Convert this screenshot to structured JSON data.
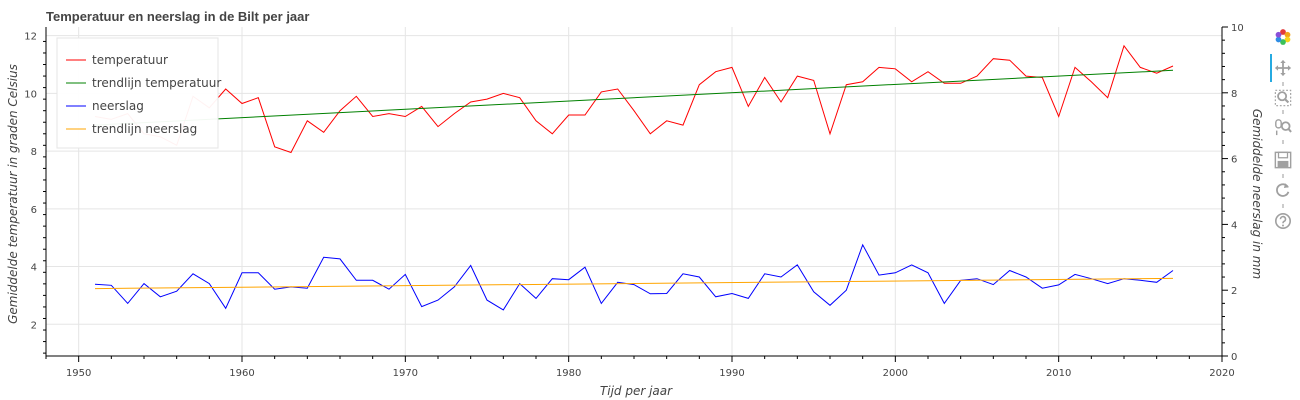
{
  "chart_data": {
    "type": "line",
    "title": "Temperatuur en neerslag in de Bilt per jaar",
    "xlabel": "Tijd per jaar",
    "ylabel_left": "Gemiddelde temperatuur in graden Celsius",
    "ylabel_right": "Gemiddelde neerslag in mm",
    "xlim": [
      1948,
      2020
    ],
    "ylim_left": [
      0.9,
      12.3
    ],
    "ylim_right": [
      0,
      10
    ],
    "xticks": [
      1950,
      1960,
      1970,
      1980,
      1990,
      2000,
      2010,
      2020
    ],
    "yticks_left": [
      2,
      4,
      6,
      8,
      10,
      12
    ],
    "yticks_right": [
      0,
      2,
      4,
      6,
      8,
      10
    ],
    "grid": true,
    "legend_position": "top-left",
    "x": [
      1951,
      1952,
      1953,
      1954,
      1955,
      1956,
      1957,
      1958,
      1959,
      1960,
      1961,
      1962,
      1963,
      1964,
      1965,
      1966,
      1967,
      1968,
      1969,
      1970,
      1971,
      1972,
      1973,
      1974,
      1975,
      1976,
      1977,
      1978,
      1979,
      1980,
      1981,
      1982,
      1983,
      1984,
      1985,
      1986,
      1987,
      1988,
      1989,
      1990,
      1991,
      1992,
      1993,
      1994,
      1995,
      1996,
      1997,
      1998,
      1999,
      2000,
      2001,
      2002,
      2003,
      2004,
      2005,
      2006,
      2007,
      2008,
      2009,
      2010,
      2011,
      2012,
      2013,
      2014,
      2015,
      2016,
      2017
    ],
    "series": [
      {
        "name": "temperatuur",
        "color": "#ff0000",
        "axis": "left",
        "values": [
          9.2,
          9.1,
          9.3,
          8.6,
          8.5,
          8.2,
          9.9,
          9.5,
          10.15,
          9.65,
          9.85,
          8.15,
          7.95,
          9.05,
          8.65,
          9.4,
          9.9,
          9.2,
          9.3,
          9.2,
          9.55,
          8.85,
          9.3,
          9.7,
          9.8,
          10.0,
          9.85,
          9.05,
          8.6,
          9.25,
          9.25,
          10.05,
          10.15,
          9.4,
          8.6,
          9.05,
          8.9,
          10.3,
          10.75,
          10.9,
          9.55,
          10.55,
          9.7,
          10.6,
          10.45,
          8.6,
          10.3,
          10.4,
          10.9,
          10.85,
          10.4,
          10.75,
          10.35,
          10.35,
          10.6,
          11.2,
          11.15,
          10.6,
          10.55,
          9.2,
          10.9,
          10.4,
          9.85,
          11.65,
          10.9,
          10.7,
          10.95
        ]
      },
      {
        "name": "trendlijn temperatuur",
        "color": "#008000",
        "axis": "left",
        "values": [
          8.9,
          10.8
        ],
        "x": [
          1951,
          2017
        ]
      },
      {
        "name": "neerslag",
        "color": "#0000ff",
        "axis": "right",
        "values": [
          2.18,
          2.15,
          1.6,
          2.2,
          1.8,
          1.97,
          2.5,
          2.2,
          1.45,
          2.53,
          2.53,
          2.03,
          2.1,
          2.06,
          3.0,
          2.95,
          2.3,
          2.3,
          2.03,
          2.48,
          1.5,
          1.7,
          2.1,
          2.75,
          1.7,
          1.4,
          2.2,
          1.75,
          2.35,
          2.32,
          2.7,
          1.6,
          2.24,
          2.17,
          1.89,
          1.9,
          2.5,
          2.4,
          1.8,
          1.9,
          1.75,
          2.5,
          2.4,
          2.77,
          1.95,
          1.54,
          2.0,
          3.38,
          2.46,
          2.53,
          2.77,
          2.53,
          1.6,
          2.3,
          2.35,
          2.17,
          2.6,
          2.4,
          2.06,
          2.16,
          2.48,
          2.35,
          2.2,
          2.35,
          2.3,
          2.24,
          2.6
        ]
      },
      {
        "name": "trendlijn neerslag",
        "color": "#ffa500",
        "axis": "right",
        "values": [
          2.05,
          2.36
        ],
        "x": [
          1951,
          2017
        ]
      }
    ]
  },
  "toolbar": {
    "tools": [
      {
        "name": "bokeh-logo-icon"
      },
      {
        "name": "pan-icon",
        "active": true
      },
      {
        "name": "box-zoom-icon"
      },
      {
        "name": "wheel-zoom-icon"
      },
      {
        "name": "save-icon"
      },
      {
        "name": "reset-icon"
      },
      {
        "name": "help-icon"
      }
    ]
  }
}
